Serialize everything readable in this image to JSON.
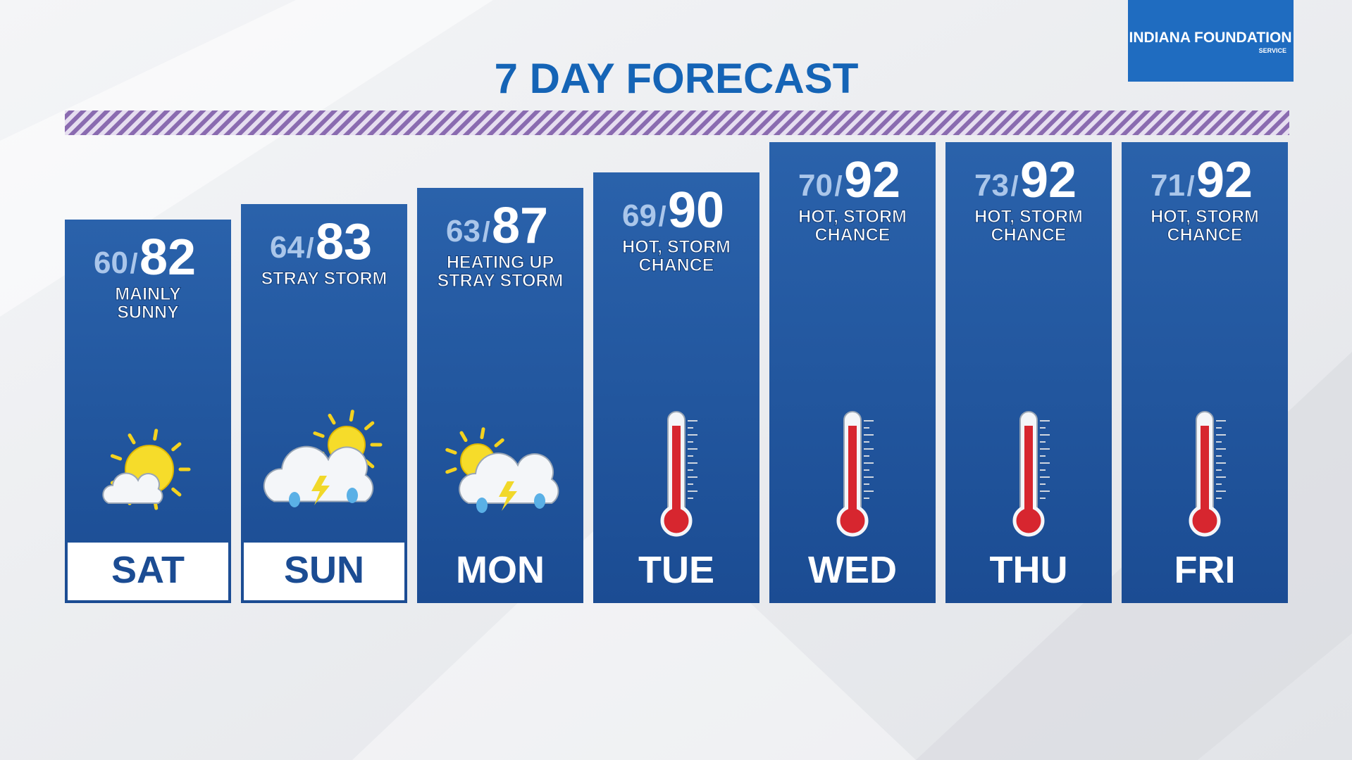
{
  "header": {
    "title": "7 DAY FORECAST"
  },
  "logo": {
    "name": "INDIANA FOUNDATION",
    "sub": "SERVICE"
  },
  "separator": "/",
  "days": [
    {
      "day": "SAT",
      "low": 60,
      "high": 82,
      "desc": [
        "MAINLY",
        "SUNNY"
      ]
    },
    {
      "day": "SUN",
      "low": 64,
      "high": 83,
      "desc": [
        "STRAY STORM"
      ]
    },
    {
      "day": "MON",
      "low": 63,
      "high": 87,
      "desc": [
        "HEATING UP",
        "STRAY STORM"
      ]
    },
    {
      "day": "TUE",
      "low": 69,
      "high": 90,
      "desc": [
        "HOT, STORM",
        "CHANCE"
      ]
    },
    {
      "day": "WED",
      "low": 70,
      "high": 92,
      "desc": [
        "HOT, STORM",
        "CHANCE"
      ]
    },
    {
      "day": "THU",
      "low": 73,
      "high": 92,
      "desc": [
        "HOT, STORM",
        "CHANCE"
      ]
    },
    {
      "day": "FRI",
      "low": 71,
      "high": 92,
      "desc": [
        "HOT, STORM",
        "CHANCE"
      ]
    }
  ]
}
